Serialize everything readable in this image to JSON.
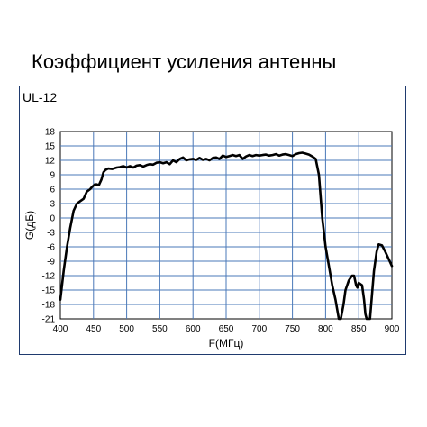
{
  "page": {
    "title": "Коэффициент усиления антенны"
  },
  "chart_data": {
    "type": "line",
    "model_label": "UL-12",
    "xlabel": "F(МГц)",
    "ylabel": "G(дБ)",
    "xlim": [
      400,
      900
    ],
    "ylim": [
      -21,
      18
    ],
    "x_ticks": [
      400,
      450,
      500,
      550,
      600,
      650,
      700,
      750,
      800,
      850,
      900
    ],
    "y_ticks": [
      18,
      15,
      12,
      9,
      6,
      3,
      0,
      -3,
      -6,
      -9,
      -12,
      -15,
      -18,
      -21
    ],
    "grid": true,
    "series": [
      {
        "name": "",
        "color": "#000000",
        "x": [
          400,
          405,
          410,
          415,
          420,
          425,
          430,
          435,
          440,
          445,
          448,
          452,
          455,
          458,
          462,
          465,
          468,
          472,
          478,
          485,
          490,
          495,
          500,
          505,
          510,
          515,
          520,
          525,
          530,
          535,
          540,
          545,
          550,
          555,
          560,
          565,
          570,
          575,
          580,
          585,
          590,
          595,
          600,
          605,
          610,
          615,
          620,
          625,
          630,
          635,
          640,
          645,
          650,
          655,
          660,
          665,
          670,
          675,
          680,
          685,
          690,
          695,
          700,
          705,
          710,
          715,
          720,
          725,
          730,
          735,
          740,
          745,
          750,
          755,
          760,
          765,
          770,
          775,
          780,
          785,
          790,
          795,
          800,
          805,
          810,
          815,
          820,
          823,
          827,
          830,
          835,
          840,
          843,
          846,
          848,
          850,
          855,
          858,
          860,
          862,
          864,
          865,
          867,
          870,
          873,
          877,
          880,
          885,
          890,
          895,
          900
        ],
        "y": [
          -17,
          -11,
          -6,
          -2,
          1.5,
          3,
          3.5,
          4,
          5.5,
          6,
          6.5,
          7,
          7,
          6.8,
          8,
          9.5,
          10,
          10.3,
          10.2,
          10.5,
          10.6,
          10.8,
          10.5,
          10.8,
          10.5,
          10.9,
          11,
          10.7,
          11,
          11.2,
          11.1,
          11.5,
          11.6,
          11.4,
          11.6,
          11.2,
          12,
          11.6,
          12.3,
          12.6,
          12,
          12.2,
          12.3,
          12.1,
          12.5,
          12.1,
          12.3,
          12,
          12.5,
          12.6,
          12.3,
          13,
          12.7,
          12.9,
          13.1,
          12.9,
          13.1,
          12.3,
          12.8,
          13.1,
          12.9,
          13.1,
          13,
          13.1,
          13.2,
          13,
          13.1,
          13.3,
          13,
          13.2,
          13.3,
          13.1,
          12.9,
          13.3,
          13.5,
          13.6,
          13.4,
          13.2,
          12.8,
          12.3,
          9,
          0,
          -6,
          -10,
          -14,
          -17,
          -21,
          -21,
          -18,
          -15,
          -13,
          -12,
          -12,
          -14,
          -14.5,
          -13.5,
          -14,
          -17,
          -20,
          -21,
          -21,
          -21,
          -21,
          -16,
          -11,
          -7,
          -5.5,
          -5.7,
          -7,
          -8.5,
          -10
        ]
      }
    ]
  }
}
